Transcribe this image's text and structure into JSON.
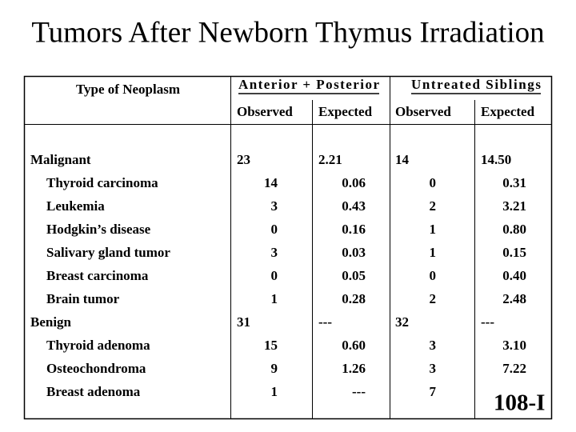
{
  "title": "Tumors After Newborn Thymus Irradiation",
  "table": {
    "header": {
      "type": "Type of Neoplasm",
      "groups": [
        {
          "label": "Anterior + Posterior",
          "columns": [
            "Observed",
            "Expected"
          ]
        },
        {
          "label": "Untreated Siblings",
          "columns": [
            "Observed",
            "Expected"
          ]
        }
      ]
    },
    "groups": [
      {
        "label": "Malignant",
        "cells": [
          "23",
          "2.21",
          "14",
          "14.50"
        ],
        "rows": [
          {
            "label": "Thyroid carcinoma",
            "cells": [
              "14",
              "0.06",
              "0",
              "0.31"
            ]
          },
          {
            "label": "Leukemia",
            "cells": [
              "3",
              "0.43",
              "2",
              "3.21"
            ]
          },
          {
            "label": "Hodgkin’s disease",
            "cells": [
              "0",
              "0.16",
              "1",
              "0.80"
            ]
          },
          {
            "label": "Salivary gland tumor",
            "cells": [
              "3",
              "0.03",
              "1",
              "0.15"
            ]
          },
          {
            "label": "Breast carcinoma",
            "cells": [
              "0",
              "0.05",
              "0",
              "0.40"
            ]
          },
          {
            "label": "Brain tumor",
            "cells": [
              "1",
              "0.28",
              "2",
              "2.48"
            ]
          }
        ]
      },
      {
        "label": "Benign",
        "cells": [
          "31",
          "---",
          "32",
          "---"
        ],
        "rows": [
          {
            "label": "Thyroid adenoma",
            "cells": [
              "15",
              "0.60",
              "3",
              "3.10"
            ]
          },
          {
            "label": "Osteochondroma",
            "cells": [
              "9",
              "1.26",
              "3",
              "7.22"
            ]
          },
          {
            "label": "Breast adenoma",
            "cells": [
              "1",
              "---",
              "7",
              "---"
            ]
          }
        ]
      }
    ]
  },
  "badge": "108-I"
}
